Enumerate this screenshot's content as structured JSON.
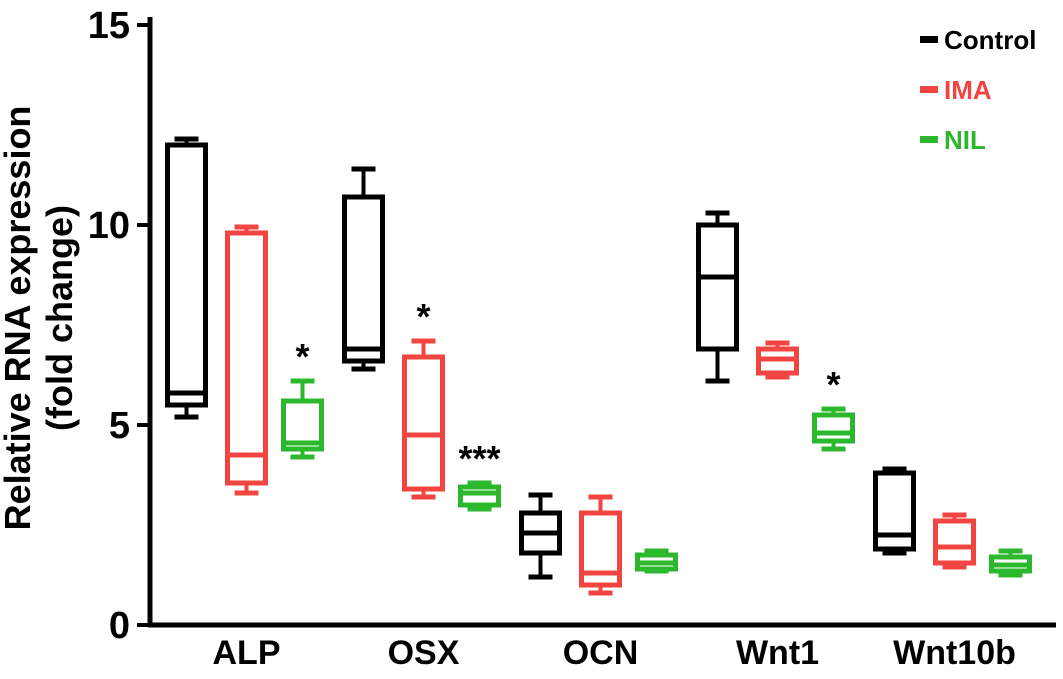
{
  "chart_data": {
    "type": "box",
    "title": "",
    "ylabel_lines": [
      "Relative RNA expression",
      "(fold change)"
    ],
    "xlabel": "",
    "ylim": [
      0,
      15
    ],
    "yticks": [
      0,
      5,
      10,
      15
    ],
    "grid": false,
    "legend_position": "top-right",
    "categories": [
      "ALP",
      "OSX",
      "OCN",
      "Wnt1",
      "Wnt10b"
    ],
    "series": [
      {
        "name": "Control",
        "color": "#000000",
        "boxes": [
          {
            "min": 5.2,
            "q1": 5.5,
            "median": 5.8,
            "q3": 12.0,
            "max": 12.15,
            "sig": ""
          },
          {
            "min": 6.4,
            "q1": 6.6,
            "median": 6.9,
            "q3": 10.7,
            "max": 11.4,
            "sig": ""
          },
          {
            "min": 1.2,
            "q1": 1.8,
            "median": 2.3,
            "q3": 2.8,
            "max": 3.25,
            "sig": ""
          },
          {
            "min": 6.1,
            "q1": 6.9,
            "median": 8.7,
            "q3": 10.0,
            "max": 10.3,
            "sig": ""
          },
          {
            "min": 1.8,
            "q1": 1.9,
            "median": 2.25,
            "q3": 3.8,
            "max": 3.9,
            "sig": ""
          }
        ]
      },
      {
        "name": "IMA",
        "color": "#f04540",
        "boxes": [
          {
            "min": 3.3,
            "q1": 3.55,
            "median": 4.25,
            "q3": 9.8,
            "max": 9.95,
            "sig": ""
          },
          {
            "min": 3.2,
            "q1": 3.4,
            "median": 4.75,
            "q3": 6.7,
            "max": 7.1,
            "sig": "*"
          },
          {
            "min": 0.8,
            "q1": 1.0,
            "median": 1.3,
            "q3": 2.8,
            "max": 3.2,
            "sig": ""
          },
          {
            "min": 6.2,
            "q1": 6.3,
            "median": 6.65,
            "q3": 6.9,
            "max": 7.05,
            "sig": ""
          },
          {
            "min": 1.45,
            "q1": 1.55,
            "median": 1.95,
            "q3": 2.6,
            "max": 2.75,
            "sig": ""
          }
        ]
      },
      {
        "name": "NIL",
        "color": "#2cb82c",
        "boxes": [
          {
            "min": 4.2,
            "q1": 4.4,
            "median": 4.55,
            "q3": 5.6,
            "max": 6.1,
            "sig": "*"
          },
          {
            "min": 2.9,
            "q1": 3.0,
            "median": 3.3,
            "q3": 3.45,
            "max": 3.55,
            "sig": "***"
          },
          {
            "min": 1.35,
            "q1": 1.4,
            "median": 1.55,
            "q3": 1.75,
            "max": 1.85,
            "sig": ""
          },
          {
            "min": 4.4,
            "q1": 4.6,
            "median": 4.8,
            "q3": 5.25,
            "max": 5.4,
            "sig": "*"
          },
          {
            "min": 1.25,
            "q1": 1.35,
            "median": 1.5,
            "q3": 1.7,
            "max": 1.85,
            "sig": ""
          }
        ]
      }
    ]
  }
}
